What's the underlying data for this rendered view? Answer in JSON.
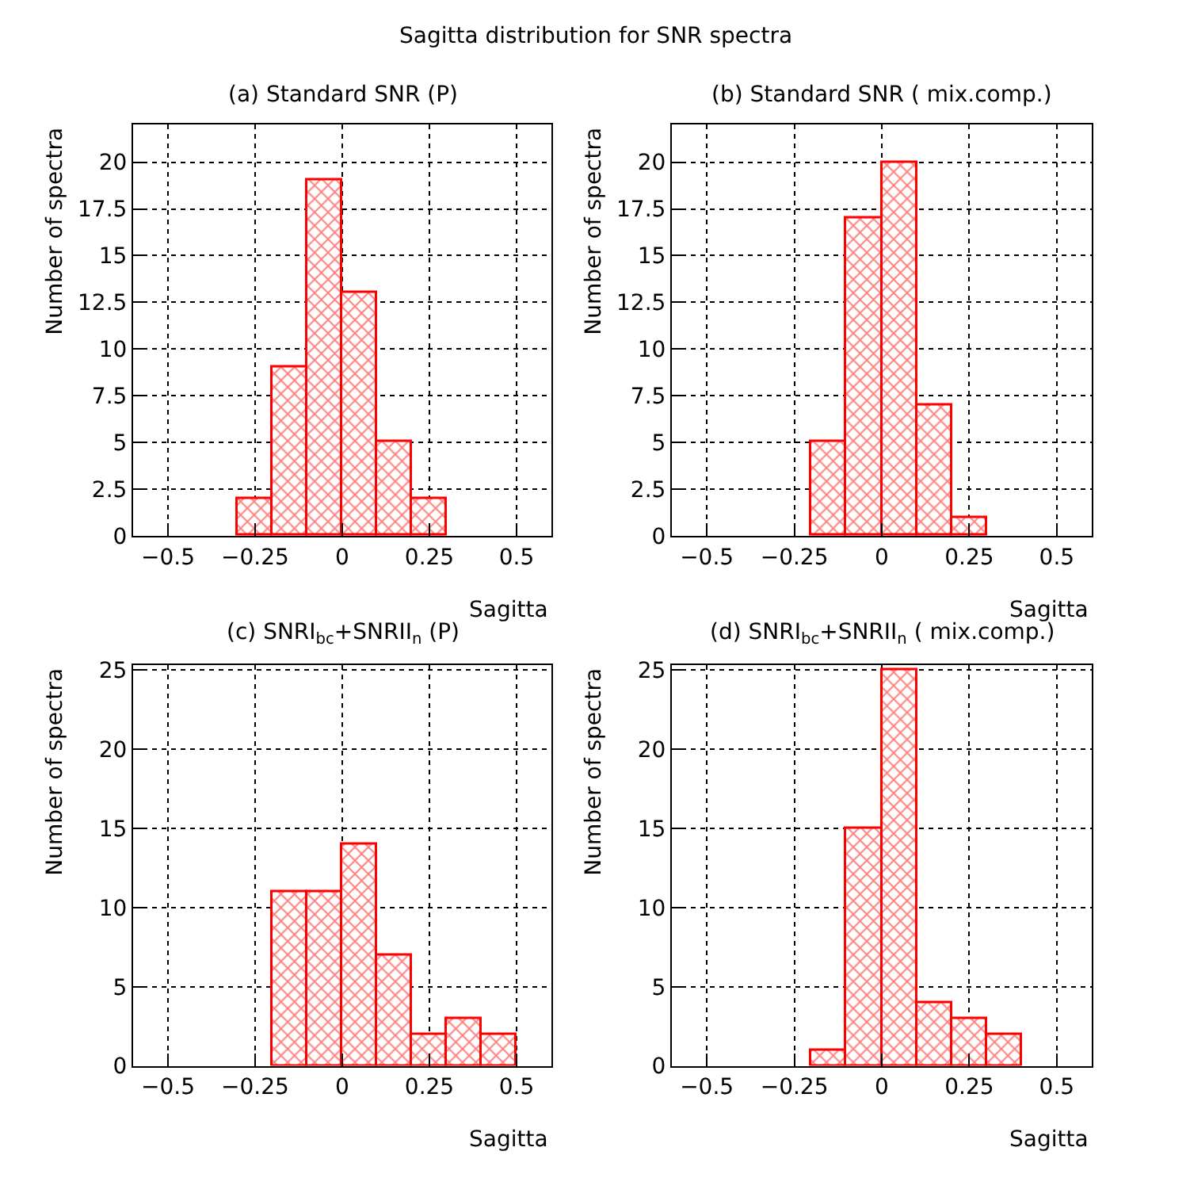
{
  "chart_data": [
    {
      "type": "histogram",
      "title": "(a) Standard SNR (P)",
      "xlabel": "Sagitta",
      "ylabel": "Number of spectra",
      "annotations": [
        "Sagitta distribution for SNR spectra"
      ],
      "bins": [
        -0.3,
        -0.2,
        -0.1,
        0,
        0.1,
        0.2,
        0.3
      ],
      "values": [
        2,
        9,
        19,
        13,
        5,
        2
      ],
      "color": "#ff0000",
      "xlim": [
        -0.6,
        0.6
      ],
      "xticks": [
        -0.5,
        -0.25,
        0,
        0.25,
        0.5
      ],
      "ylim": [
        0,
        22
      ],
      "yticks": [
        0,
        2.5,
        5,
        7.5,
        10,
        12.5,
        15,
        17.5,
        20
      ],
      "grid": true,
      "line_style": "dotted"
    },
    {
      "type": "histogram",
      "title": "(b) Standard SNR ( mix.comp.)",
      "xlabel": "Sagitta",
      "ylabel": "Number of spectra",
      "bins": [
        -0.2,
        -0.1,
        0,
        0.1,
        0.2,
        0.3
      ],
      "values": [
        5,
        17,
        20,
        7,
        1
      ],
      "color": "#ff0000",
      "xlim": [
        -0.6,
        0.6
      ],
      "xticks": [
        -0.5,
        -0.25,
        0,
        0.25,
        0.5
      ],
      "ylim": [
        0,
        22
      ],
      "yticks": [
        0,
        2.5,
        5,
        7.5,
        10,
        12.5,
        15,
        17.5,
        20
      ],
      "grid": true
    },
    {
      "type": "histogram",
      "title": "(c) SNRI$_{bc}$+SNRII$_{n}$ (P)",
      "xlabel": "Sagitta",
      "ylabel": "Number of spectra",
      "bins": [
        -0.2,
        -0.1,
        0,
        0.1,
        0.2,
        0.3,
        0.4,
        0.5
      ],
      "values": [
        11,
        11,
        14,
        7,
        2,
        3,
        2
      ],
      "color": "#ff0000",
      "xlim": [
        -0.6,
        0.6
      ],
      "xticks": [
        -0.5,
        -0.25,
        0,
        0.25,
        0.5
      ],
      "ylim": [
        0,
        25.3
      ],
      "yticks": [
        0,
        5,
        10,
        15,
        20,
        25
      ],
      "grid": true
    },
    {
      "type": "histogram",
      "title": "(d) SNRI$_{bc}$+SNRII$_{n}$ ( mix.comp.)",
      "xlabel": "Sagitta",
      "ylabel": "Number of spectra",
      "bins": [
        -0.2,
        -0.1,
        0,
        0.1,
        0.2,
        0.3,
        0.4
      ],
      "values": [
        1,
        15,
        25,
        4,
        3,
        2
      ],
      "color": "#ff0000",
      "xlim": [
        -0.6,
        0.6
      ],
      "xticks": [
        -0.5,
        -0.25,
        0,
        0.25,
        0.5
      ],
      "ylim": [
        0,
        25.3
      ],
      "yticks": [
        0,
        5,
        10,
        15,
        20,
        25
      ],
      "grid": true
    }
  ]
}
